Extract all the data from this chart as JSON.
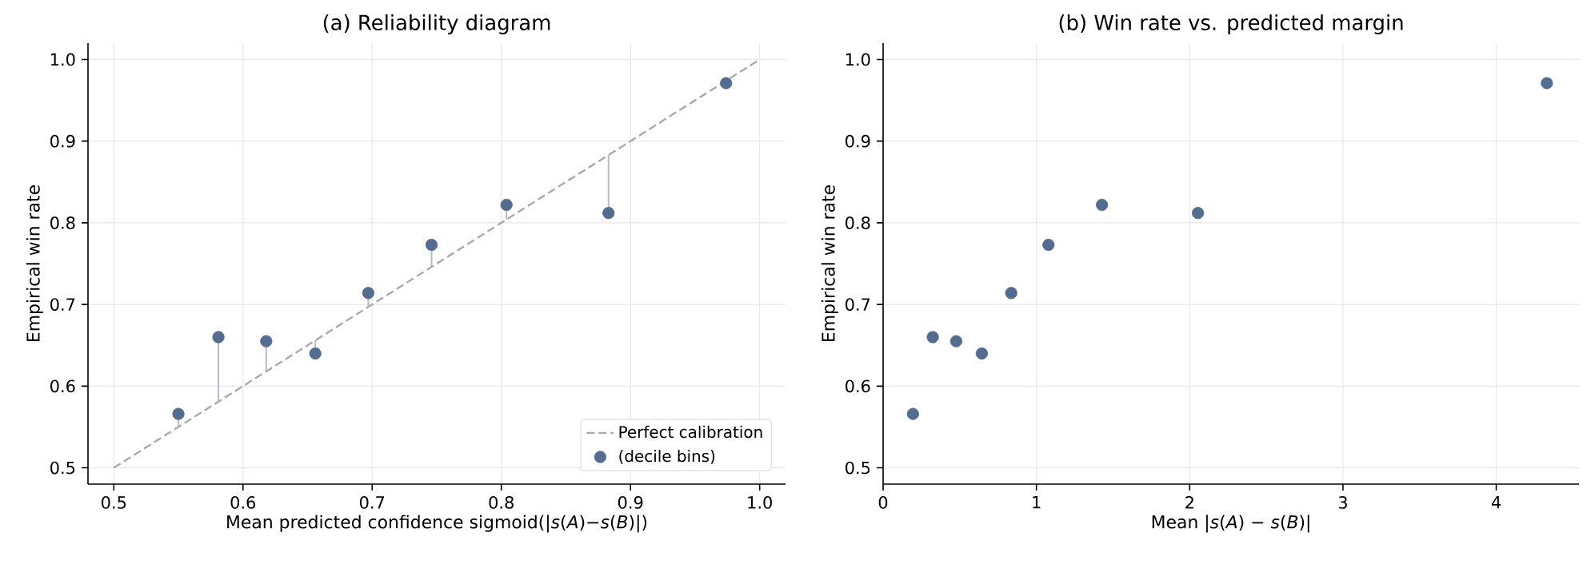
{
  "chart_data": [
    {
      "type": "scatter",
      "title": "(a) Reliability diagram",
      "xlabel": "Mean predicted confidence sigmoid(|*s*(*A*)−*s*(*B*)|)",
      "ylabel": "Empirical win rate",
      "xlim": [
        0.48,
        1.02
      ],
      "ylim": [
        0.48,
        1.02
      ],
      "xticks": [
        0.5,
        0.6,
        0.7,
        0.8,
        0.9,
        {
          "value": 1.0,
          "label": "1.0"
        }
      ],
      "yticks": [
        0.5,
        0.6,
        0.7,
        0.8,
        0.9,
        {
          "value": 1.0,
          "label": "1.0"
        }
      ],
      "grid": true,
      "legend": "bottom right",
      "series": [
        {
          "name": "Perfect calibration",
          "type": "line",
          "line_style": "dashed",
          "marker": "none",
          "color": "#aaaaaa",
          "x": [
            0.5,
            1.0
          ],
          "values": [
            0.5,
            1.0
          ]
        },
        {
          "name": "(decile bins)",
          "marker": "circle",
          "color": "#536c8f",
          "x": [
            0.55,
            0.581,
            0.618,
            0.656,
            0.697,
            0.746,
            0.804,
            0.883,
            0.974
          ],
          "values": [
            0.566,
            0.66,
            0.655,
            0.64,
            0.714,
            0.773,
            0.822,
            0.812,
            0.971
          ],
          "errors": [
            [
              0.55,
              0.566
            ],
            [
              0.581,
              0.66
            ],
            [
              0.618,
              0.655
            ],
            [
              0.64,
              0.656
            ],
            [
              0.697,
              0.714
            ],
            [
              0.746,
              0.773
            ],
            [
              0.804,
              0.822
            ],
            [
              0.812,
              0.883
            ],
            [
              0.971,
              0.974
            ]
          ]
        }
      ]
    },
    {
      "type": "scatter",
      "title": "(b) Win rate vs. predicted margin",
      "xlabel": "Mean |*s*(*A*) − *s*(*B*)|",
      "ylabel": "Empirical win rate",
      "xlim": [
        0,
        4.54
      ],
      "ylim": [
        0.48,
        1.02
      ],
      "xticks": [
        0,
        1,
        2,
        3,
        4
      ],
      "yticks": [
        0.5,
        0.6,
        0.7,
        0.8,
        0.9,
        {
          "value": 1.0,
          "label": "1.0"
        }
      ],
      "grid": true,
      "series": [
        {
          "marker": "circle",
          "color": "#536c8f",
          "x": [
            0.195,
            0.324,
            0.477,
            0.644,
            0.836,
            1.079,
            1.428,
            2.054,
            4.33
          ],
          "values": [
            0.566,
            0.66,
            0.655,
            0.64,
            0.714,
            0.773,
            0.822,
            0.812,
            0.971
          ]
        }
      ]
    }
  ]
}
